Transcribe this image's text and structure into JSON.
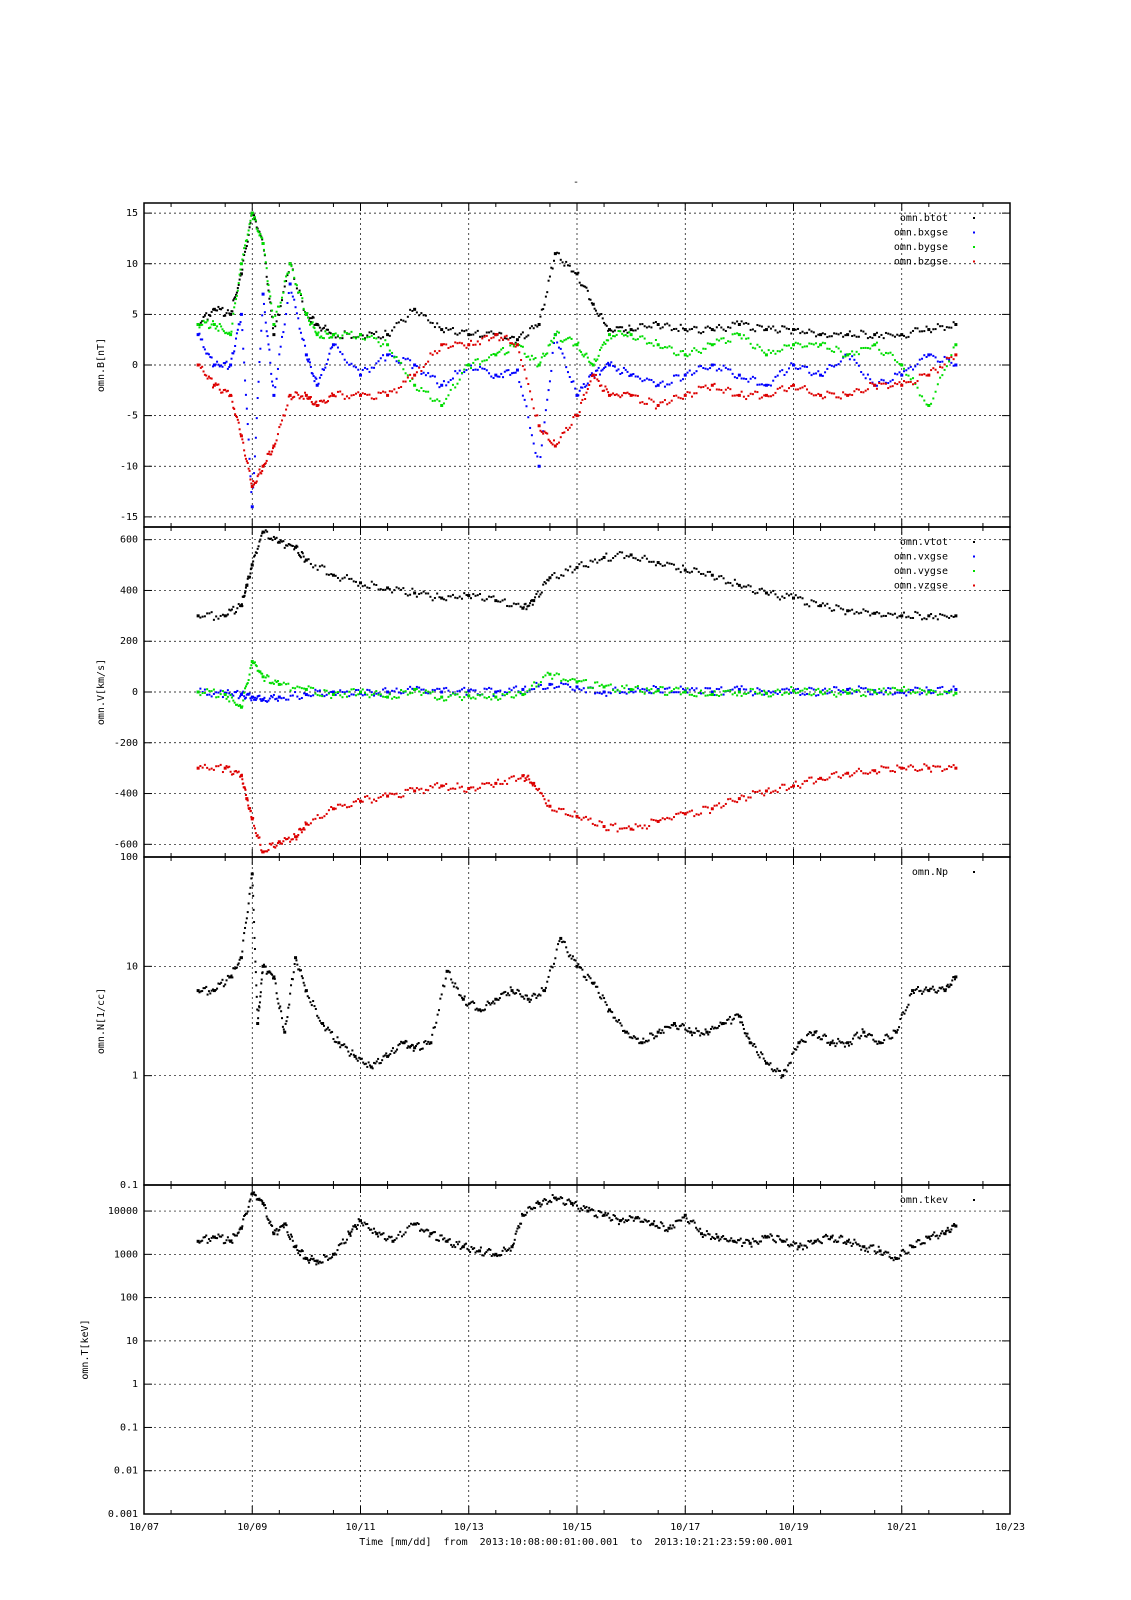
{
  "figure": {
    "title": "-",
    "xlabel_parts": [
      "Time [mm/dd]",
      "from",
      "2013:10:08:00:01:00.001",
      "to",
      "2013:10:21:23:59:00.001"
    ]
  },
  "chart_data": [
    {
      "type": "scatter",
      "ylabel": "omn.B[nT]",
      "ylim": [
        -16,
        16
      ],
      "yscale": "linear",
      "yticks": [
        -15,
        -10,
        -5,
        0,
        5,
        10,
        15
      ],
      "xlim": [
        0,
        16
      ],
      "xtick_labels": [
        "10/07",
        "10/09",
        "10/11",
        "10/13",
        "10/15",
        "10/17",
        "10/19",
        "10/21",
        "10/23"
      ],
      "grid": true,
      "legend_position": "top-right",
      "series": [
        {
          "name": "omn.btot",
          "color": "#000000",
          "x": [
            1.0,
            1.3,
            1.6,
            1.8,
            2.0,
            2.2,
            2.4,
            2.7,
            3.0,
            3.2,
            3.5,
            4.0,
            4.5,
            5.0,
            5.5,
            6.0,
            6.5,
            6.9,
            7.3,
            7.6,
            8.0,
            8.3,
            8.6,
            9.0,
            9.5,
            10.0,
            10.5,
            11.0,
            11.5,
            12.0,
            12.5,
            13.0,
            13.5,
            14.0,
            14.5,
            15.0
          ],
          "y": [
            4,
            5.5,
            5,
            9,
            15,
            12,
            3,
            10,
            5,
            4,
            3,
            3,
            3,
            5.5,
            3.5,
            3,
            3,
            2.5,
            4,
            11,
            9,
            6,
            3.5,
            3.5,
            4,
            3.5,
            3.5,
            4,
            3.5,
            3.5,
            3,
            3,
            3,
            3,
            3.5,
            4
          ]
        },
        {
          "name": "omn.bxgse",
          "color": "#0000ff",
          "x": [
            1.0,
            1.3,
            1.6,
            1.8,
            2.0,
            2.2,
            2.4,
            2.7,
            3.0,
            3.2,
            3.5,
            4.0,
            4.5,
            5.0,
            5.5,
            6.0,
            6.5,
            6.9,
            7.3,
            7.6,
            8.0,
            8.3,
            8.6,
            9.0,
            9.5,
            10.0,
            10.5,
            11.0,
            11.5,
            12.0,
            12.5,
            13.0,
            13.5,
            14.0,
            14.5,
            15.0
          ],
          "y": [
            3,
            0,
            0,
            5,
            -14,
            7,
            -3,
            8,
            1,
            -2,
            2,
            -1,
            1,
            0,
            -2,
            0,
            -1,
            -0.5,
            -10,
            3,
            -3,
            -1,
            0,
            -1,
            -2,
            -1,
            0,
            -1,
            -2,
            0,
            -1,
            1,
            -2,
            -1,
            1,
            0
          ]
        },
        {
          "name": "omn.bygse",
          "color": "#00dd00",
          "x": [
            1.0,
            1.3,
            1.6,
            1.8,
            2.0,
            2.2,
            2.4,
            2.7,
            3.0,
            3.2,
            3.5,
            4.0,
            4.5,
            5.0,
            5.5,
            6.0,
            6.5,
            6.9,
            7.3,
            7.6,
            8.0,
            8.3,
            8.6,
            9.0,
            9.5,
            10.0,
            10.5,
            11.0,
            11.5,
            12.0,
            12.5,
            13.0,
            13.5,
            14.0,
            14.5,
            15.0
          ],
          "y": [
            4,
            4,
            3,
            10,
            15,
            12,
            4,
            10,
            5,
            3,
            3,
            3,
            2,
            -2,
            -4,
            0,
            1,
            2,
            0,
            3,
            2,
            0,
            3,
            3,
            2,
            1,
            2,
            3,
            1,
            2,
            2,
            1,
            2,
            0,
            -4,
            2
          ]
        },
        {
          "name": "omn.bzgse",
          "color": "#dd0000",
          "x": [
            1.0,
            1.3,
            1.6,
            1.8,
            2.0,
            2.2,
            2.4,
            2.7,
            3.0,
            3.2,
            3.5,
            4.0,
            4.5,
            5.0,
            5.5,
            6.0,
            6.5,
            6.9,
            7.3,
            7.6,
            8.0,
            8.3,
            8.6,
            9.0,
            9.5,
            10.0,
            10.5,
            11.0,
            11.5,
            12.0,
            12.5,
            13.0,
            13.5,
            14.0,
            14.5,
            15.0
          ],
          "y": [
            0,
            -2,
            -3,
            -7,
            -12,
            -10,
            -8,
            -3,
            -3,
            -4,
            -3,
            -3,
            -3,
            -1,
            2,
            2,
            3,
            2,
            -6,
            -8,
            -5,
            -1,
            -3,
            -3,
            -4,
            -3,
            -2,
            -3,
            -3,
            -2,
            -3,
            -3,
            -2,
            -2,
            -1,
            1
          ]
        }
      ]
    },
    {
      "type": "scatter",
      "ylabel": "omn.V[km/s]",
      "ylim": [
        -650,
        650
      ],
      "yscale": "linear",
      "yticks": [
        -600,
        -400,
        -200,
        0,
        200,
        400,
        600
      ],
      "xlim": [
        0,
        16
      ],
      "grid": true,
      "legend_position": "top-right",
      "series": [
        {
          "name": "omn.vtot",
          "color": "#000000",
          "x": [
            1.0,
            1.5,
            1.8,
            1.9,
            2.0,
            2.2,
            2.5,
            2.8,
            3.0,
            3.5,
            4.0,
            4.5,
            5.0,
            5.5,
            6.0,
            6.5,
            7.0,
            7.2,
            7.5,
            8.0,
            8.5,
            9.0,
            9.5,
            10.0,
            10.5,
            11.0,
            11.5,
            12.0,
            12.5,
            13.0,
            13.5,
            14.0,
            14.5,
            15.0
          ],
          "y": [
            300,
            300,
            340,
            420,
            500,
            630,
            590,
            570,
            520,
            460,
            430,
            410,
            390,
            370,
            380,
            360,
            330,
            360,
            450,
            490,
            530,
            540,
            510,
            480,
            460,
            420,
            390,
            370,
            340,
            320,
            310,
            300,
            300,
            300
          ]
        },
        {
          "name": "omn.vxgse",
          "color": "#0000ff",
          "x": [
            1.0,
            1.5,
            1.8,
            2.0,
            2.2,
            2.5,
            3.0,
            3.5,
            4.0,
            4.5,
            5.0,
            5.5,
            6.0,
            6.5,
            7.0,
            7.5,
            8.0,
            8.5,
            9.0,
            9.5,
            10.0,
            10.5,
            11.0,
            11.5,
            12.0,
            12.5,
            13.0,
            13.5,
            14.0,
            14.5,
            15.0
          ],
          "y": [
            0,
            -5,
            -10,
            -20,
            -30,
            -20,
            -10,
            0,
            -5,
            0,
            10,
            0,
            5,
            0,
            10,
            30,
            20,
            0,
            5,
            10,
            5,
            0,
            10,
            -5,
            5,
            0,
            10,
            5,
            0,
            5,
            10
          ]
        },
        {
          "name": "omn.vygse",
          "color": "#00dd00",
          "x": [
            1.0,
            1.5,
            1.8,
            2.0,
            2.2,
            2.5,
            3.0,
            3.5,
            4.0,
            4.5,
            5.0,
            5.5,
            6.0,
            6.5,
            7.0,
            7.5,
            8.0,
            8.5,
            9.0,
            9.5,
            10.0,
            10.5,
            11.0,
            11.5,
            12.0,
            12.5,
            13.0,
            13.5,
            14.0,
            14.5,
            15.0
          ],
          "y": [
            0,
            -10,
            -60,
            120,
            60,
            30,
            10,
            -10,
            0,
            -20,
            10,
            -20,
            -15,
            -20,
            -10,
            70,
            40,
            20,
            10,
            5,
            0,
            -10,
            0,
            -5,
            5,
            0,
            -5,
            0,
            5,
            0,
            -5
          ]
        },
        {
          "name": "omn.vzgse",
          "color": "#dd0000",
          "x": [
            1.0,
            1.5,
            1.8,
            1.9,
            2.0,
            2.2,
            2.5,
            2.8,
            3.0,
            3.5,
            4.0,
            4.5,
            5.0,
            5.5,
            6.0,
            6.5,
            7.0,
            7.2,
            7.5,
            8.0,
            8.5,
            9.0,
            9.5,
            10.0,
            10.5,
            11.0,
            11.5,
            12.0,
            12.5,
            13.0,
            13.5,
            14.0,
            14.5,
            15.0
          ],
          "y": [
            -300,
            -300,
            -330,
            -420,
            -500,
            -630,
            -590,
            -570,
            -520,
            -460,
            -430,
            -410,
            -390,
            -370,
            -380,
            -360,
            -330,
            -360,
            -450,
            -490,
            -530,
            -540,
            -510,
            -480,
            -460,
            -420,
            -390,
            -370,
            -340,
            -320,
            -310,
            -300,
            -300,
            -300
          ]
        }
      ]
    },
    {
      "type": "scatter",
      "ylabel": "omn.N[1/cc]",
      "ylim": [
        0.1,
        100
      ],
      "yscale": "log",
      "yticks": [
        0.1,
        1,
        10,
        100
      ],
      "xlim": [
        0,
        16
      ],
      "grid": true,
      "legend_position": "top-right",
      "series": [
        {
          "name": "omn.Np",
          "color": "#000000",
          "x": [
            1.0,
            1.3,
            1.6,
            1.8,
            2.0,
            2.1,
            2.2,
            2.4,
            2.6,
            2.8,
            3.0,
            3.3,
            3.6,
            3.9,
            4.2,
            4.5,
            4.8,
            5.0,
            5.3,
            5.6,
            5.9,
            6.2,
            6.5,
            6.8,
            7.1,
            7.4,
            7.7,
            8.0,
            8.3,
            8.6,
            8.9,
            9.2,
            9.5,
            9.8,
            10.1,
            10.4,
            10.7,
            11.0,
            11.2,
            11.5,
            11.8,
            12.1,
            12.4,
            12.7,
            13.0,
            13.3,
            13.6,
            13.9,
            14.2,
            14.5,
            14.8,
            15.0
          ],
          "y": [
            6,
            6,
            8,
            12,
            70,
            3,
            10,
            8,
            2.5,
            12,
            6,
            3,
            2,
            1.5,
            1.2,
            1.5,
            2,
            1.8,
            2,
            9,
            5,
            4,
            5,
            6,
            5,
            6,
            18,
            10,
            7,
            4,
            2.5,
            2,
            2.5,
            3,
            2.5,
            2.5,
            3,
            3.5,
            2,
            1.3,
            1,
            2,
            2.5,
            2,
            2,
            2.5,
            2,
            2.5,
            6,
            6,
            6,
            8
          ]
        }
      ]
    },
    {
      "type": "scatter",
      "ylabel": "omn.T[keV]",
      "ylim": [
        0.001,
        40000
      ],
      "yscale": "log",
      "yticks": [
        0.001,
        0.01,
        0.1,
        1,
        10,
        100,
        1000,
        10000
      ],
      "xlim": [
        0,
        16
      ],
      "grid": true,
      "legend_position": "top-right",
      "series": [
        {
          "name": "omn.tkev",
          "color": "#000000",
          "x": [
            1.0,
            1.3,
            1.6,
            1.8,
            2.0,
            2.2,
            2.4,
            2.6,
            2.8,
            3.0,
            3.2,
            3.5,
            3.8,
            4.0,
            4.3,
            4.6,
            5.0,
            5.3,
            5.6,
            5.9,
            6.2,
            6.5,
            6.8,
            7.0,
            7.3,
            7.6,
            7.9,
            8.2,
            8.5,
            8.8,
            9.1,
            9.4,
            9.7,
            10.0,
            10.3,
            10.6,
            10.9,
            11.2,
            11.5,
            11.8,
            12.1,
            12.4,
            12.7,
            13.0,
            13.3,
            13.6,
            13.9,
            14.2,
            14.5,
            14.8,
            15.0
          ],
          "y": [
            2000,
            2500,
            2000,
            4000,
            25000,
            15000,
            3000,
            5000,
            1500,
            800,
            700,
            1000,
            3000,
            6000,
            3000,
            2000,
            5000,
            3000,
            2000,
            1500,
            1200,
            1000,
            1500,
            8000,
            15000,
            20000,
            15000,
            10000,
            8000,
            6000,
            7000,
            5000,
            4000,
            8000,
            3000,
            2500,
            2000,
            1800,
            2500,
            2000,
            1500,
            2000,
            2500,
            2000,
            1500,
            1200,
            800,
            1500,
            2500,
            3000,
            4500
          ]
        }
      ]
    }
  ]
}
